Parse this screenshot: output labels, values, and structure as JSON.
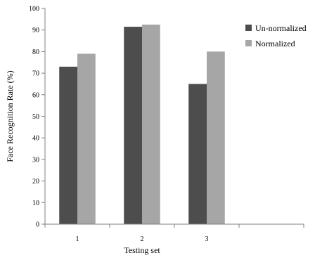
{
  "chart_data": {
    "type": "bar",
    "title": "",
    "xlabel": "Testing set",
    "ylabel": "Face Recognition Rate (%)",
    "categories": [
      "1",
      "2",
      "3"
    ],
    "extra_category_slots": 1,
    "ylim": [
      0,
      100
    ],
    "yticks": [
      0,
      10,
      20,
      30,
      40,
      50,
      60,
      70,
      80,
      90,
      100
    ],
    "grid": false,
    "legend_position": "top-right",
    "series": [
      {
        "name": "Un-normalized",
        "values": [
          73,
          91.5,
          65
        ],
        "color": "#4d4d4d"
      },
      {
        "name": "Normalized",
        "values": [
          79,
          92.5,
          80
        ],
        "color": "#a6a6a6"
      }
    ]
  }
}
